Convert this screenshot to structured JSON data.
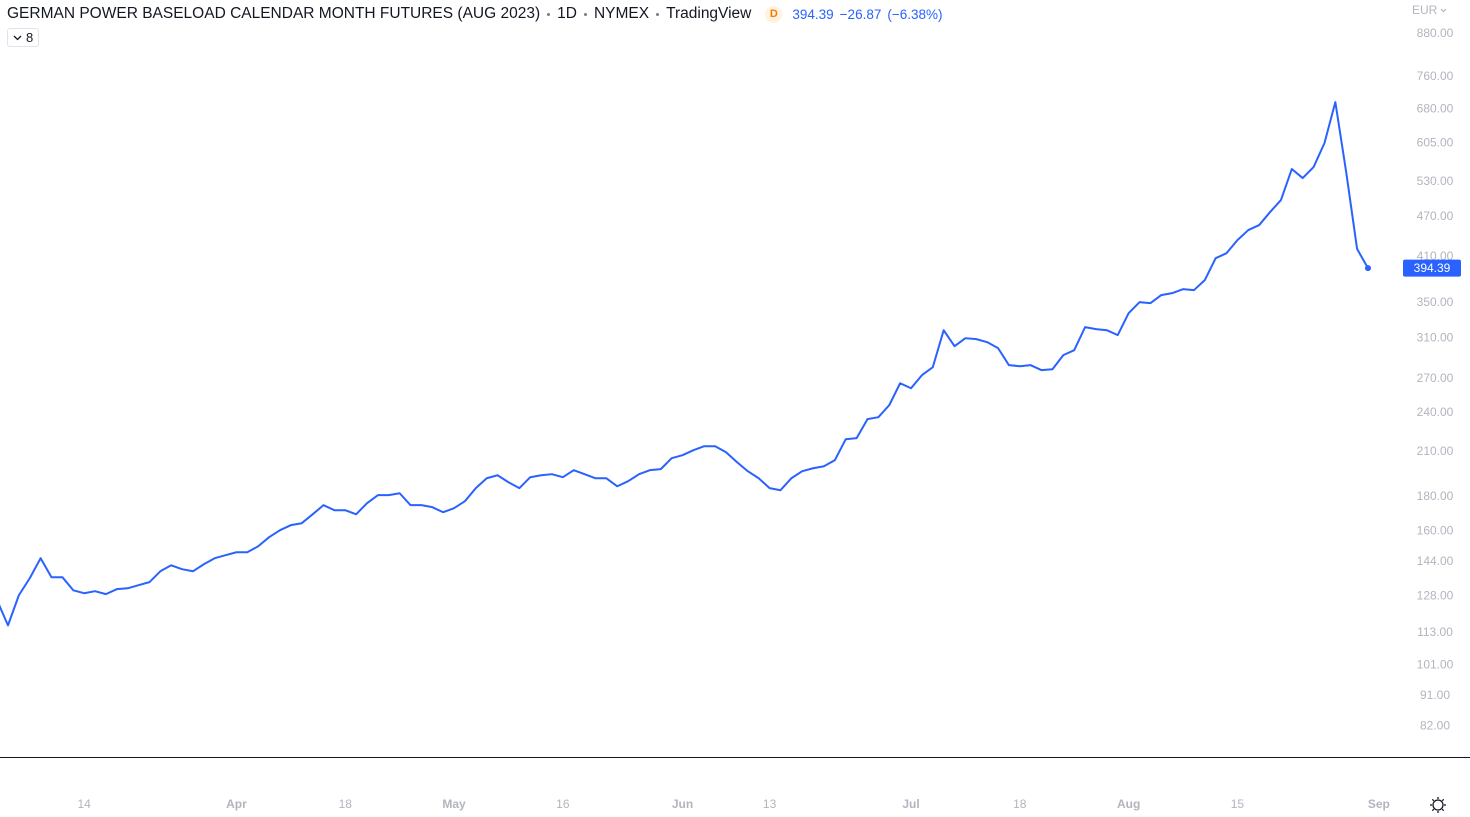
{
  "chart_data": {
    "type": "line",
    "title": "GERMAN POWER BASELOAD CALENDAR MONTH FUTURES (AUG 2023)",
    "interval": "1D",
    "exchange": "NYMEX",
    "source": "TradingView",
    "badge": "D",
    "change": "−26.87",
    "change_percent": "(−6.38%)",
    "currency": "EUR",
    "indicator_count": "8",
    "log_scale": true,
    "grid": false,
    "categories": [
      null,
      null,
      null,
      null,
      null,
      null,
      null,
      null,
      "14",
      null,
      null,
      null,
      null,
      null,
      null,
      null,
      null,
      null,
      null,
      null,
      null,
      null,
      "Apr",
      null,
      null,
      null,
      null,
      null,
      null,
      null,
      null,
      null,
      "18",
      null,
      null,
      null,
      null,
      null,
      null,
      null,
      null,
      null,
      "May",
      null,
      null,
      null,
      null,
      null,
      null,
      null,
      null,
      null,
      "16",
      null,
      null,
      null,
      null,
      null,
      null,
      null,
      null,
      null,
      null,
      "Jun",
      null,
      null,
      null,
      null,
      null,
      null,
      null,
      "13",
      null,
      null,
      null,
      null,
      null,
      null,
      null,
      null,
      null,
      null,
      null,
      null,
      "Jul",
      null,
      null,
      null,
      null,
      null,
      null,
      null,
      null,
      null,
      "18",
      null,
      null,
      null,
      null,
      null,
      null,
      null,
      null,
      null,
      "Aug",
      null,
      null,
      null,
      null,
      null,
      null,
      null,
      null,
      null,
      "15",
      null,
      null,
      null,
      null,
      null,
      null,
      null,
      null,
      null,
      null,
      null,
      null,
      "Sep"
    ],
    "series": [
      {
        "name": "GERMAN POWER BASELOAD CALENDAR MONTH FUTURES (AUG 2023)",
        "color": "#2962ff",
        "values": [
          126.3,
          115.9,
          128.5,
          136.2,
          145.9,
          136.7,
          136.7,
          130.7,
          129.4,
          130.3,
          129.0,
          131.2,
          131.6,
          133.0,
          134.4,
          139.5,
          142.4,
          140.5,
          139.5,
          142.9,
          145.9,
          147.4,
          148.9,
          148.9,
          152.0,
          156.8,
          160.6,
          163.4,
          164.5,
          169.6,
          175.0,
          172.0,
          172.0,
          169.6,
          176.2,
          181.1,
          181.1,
          182.3,
          175.0,
          175.0,
          173.8,
          170.8,
          173.2,
          177.4,
          185.5,
          191.9,
          193.9,
          189.3,
          185.5,
          192.6,
          193.9,
          194.6,
          192.6,
          197.3,
          194.6,
          191.9,
          191.9,
          186.7,
          190.0,
          194.6,
          197.3,
          198.0,
          205.6,
          207.7,
          211.3,
          214.2,
          214.2,
          209.8,
          202.8,
          196.6,
          191.9,
          185.5,
          184.2,
          191.9,
          196.6,
          198.6,
          200.0,
          204.2,
          219.4,
          220.2,
          235.0,
          236.6,
          246.6,
          265.8,
          261.3,
          273.2,
          280.8,
          318.8,
          301.8,
          310.2,
          309.2,
          306.0,
          299.8,
          282.8,
          281.8,
          282.8,
          278.0,
          278.9,
          292.7,
          297.7,
          322.2,
          320.0,
          318.8,
          313.5,
          338.0,
          351.0,
          349.8,
          359.6,
          362.0,
          367.0,
          365.7,
          378.5,
          408.1,
          415.2,
          434.2,
          449.4,
          457.2,
          478.0,
          498.1,
          554.0,
          537.1,
          557.7,
          605.5,
          696.8,
          547.8,
          421.26,
          394.39,
          null
        ]
      }
    ],
    "ylim": [
      73.8,
      989
    ],
    "yticks": [
      {
        "value": 82,
        "label": "82.00"
      },
      {
        "value": 91,
        "label": "91.00"
      },
      {
        "value": 101,
        "label": "101.00"
      },
      {
        "value": 113,
        "label": "113.00"
      },
      {
        "value": 128,
        "label": "128.00"
      },
      {
        "value": 144,
        "label": "144.00"
      },
      {
        "value": 160,
        "label": "160.00"
      },
      {
        "value": 180,
        "label": "180.00"
      },
      {
        "value": 210,
        "label": "210.00"
      },
      {
        "value": 240,
        "label": "240.00"
      },
      {
        "value": 270,
        "label": "270.00"
      },
      {
        "value": 310,
        "label": "310.00"
      },
      {
        "value": 350,
        "label": "350.00"
      },
      {
        "value": 410,
        "label": "410.00"
      },
      {
        "value": 470,
        "label": "470.00"
      },
      {
        "value": 530,
        "label": "530.00"
      },
      {
        "value": 605,
        "label": "605.00"
      },
      {
        "value": 680,
        "label": "680.00"
      },
      {
        "value": 760,
        "label": "760.00"
      },
      {
        "value": 880,
        "label": "880.00"
      }
    ]
  }
}
